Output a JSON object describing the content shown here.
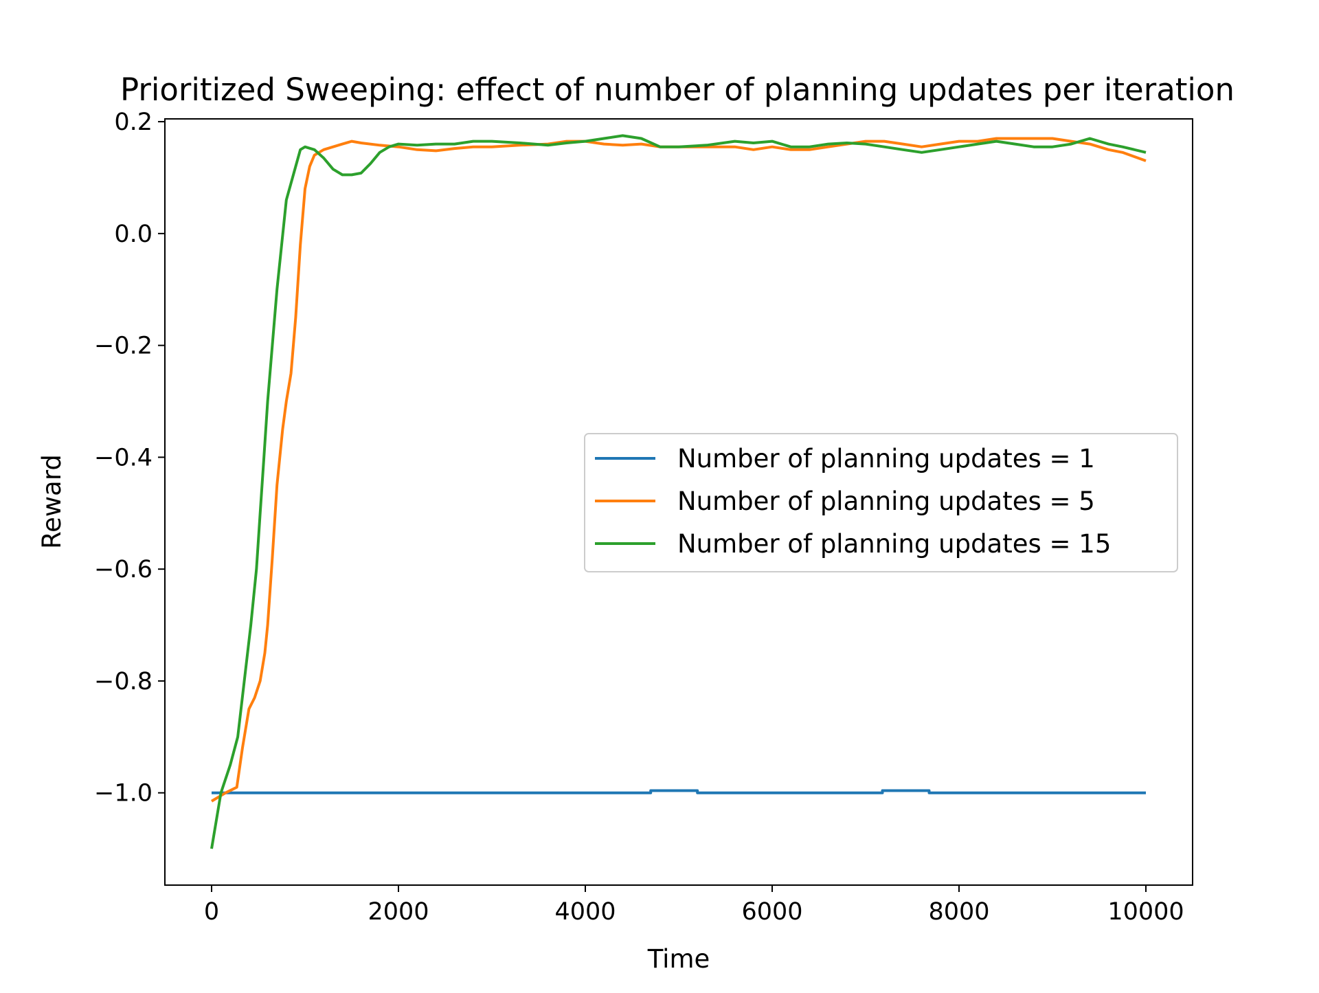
{
  "chart_data": {
    "type": "line",
    "title": "Prioritized Sweeping: effect of number of planning updates per iteration",
    "xlabel": "Time",
    "ylabel": "Reward",
    "xlim": [
      -500,
      10500
    ],
    "ylim": [
      -1.165,
      0.205
    ],
    "xticks": [
      0,
      2000,
      4000,
      6000,
      8000,
      10000
    ],
    "xtick_labels": [
      "0",
      "2000",
      "4000",
      "6000",
      "8000",
      "10000"
    ],
    "yticks": [
      0.2,
      0.0,
      -0.2,
      -0.4,
      -0.6,
      -0.8,
      -1.0
    ],
    "ytick_labels": [
      "0.2",
      "0.0",
      "−0.2",
      "−0.4",
      "−0.6",
      "−0.8",
      "−1.0"
    ],
    "grid": false,
    "legend_position": "center-right",
    "series": [
      {
        "name": "Number of planning updates = 1",
        "color": "#1f77b4",
        "x": [
          0,
          4700,
          4700,
          5200,
          5200,
          7180,
          7180,
          7680,
          7680,
          10000
        ],
        "y": [
          -1.0,
          -1.0,
          -0.996,
          -0.996,
          -1.0,
          -1.0,
          -0.996,
          -0.996,
          -1.0,
          -1.0
        ]
      },
      {
        "name": "Number of planning updates = 5",
        "color": "#ff7f0e",
        "x": [
          0,
          150,
          270,
          330,
          400,
          460,
          520,
          570,
          600,
          650,
          700,
          760,
          800,
          850,
          900,
          950,
          1000,
          1050,
          1100,
          1150,
          1200,
          1300,
          1400,
          1500,
          1600,
          1800,
          2000,
          2200,
          2400,
          2600,
          2800,
          3000,
          3300,
          3600,
          3800,
          4000,
          4200,
          4400,
          4600,
          4800,
          5000,
          5300,
          5600,
          5800,
          6000,
          6200,
          6400,
          6600,
          6800,
          7000,
          7200,
          7400,
          7600,
          7800,
          8000,
          8200,
          8400,
          8600,
          8800,
          9000,
          9200,
          9400,
          9600,
          9750,
          10000
        ],
        "y": [
          -1.015,
          -1.0,
          -0.99,
          -0.92,
          -0.85,
          -0.83,
          -0.8,
          -0.75,
          -0.7,
          -0.58,
          -0.45,
          -0.35,
          -0.3,
          -0.25,
          -0.15,
          -0.02,
          0.08,
          0.12,
          0.14,
          0.145,
          0.15,
          0.155,
          0.16,
          0.165,
          0.162,
          0.158,
          0.155,
          0.15,
          0.148,
          0.152,
          0.155,
          0.155,
          0.158,
          0.16,
          0.165,
          0.165,
          0.16,
          0.158,
          0.16,
          0.155,
          0.155,
          0.155,
          0.155,
          0.15,
          0.155,
          0.15,
          0.15,
          0.155,
          0.16,
          0.165,
          0.165,
          0.16,
          0.155,
          0.16,
          0.165,
          0.165,
          0.17,
          0.17,
          0.17,
          0.17,
          0.165,
          0.16,
          0.15,
          0.145,
          0.13
        ]
      },
      {
        "name": "Number of planning updates = 15",
        "color": "#2ca02c",
        "x": [
          0,
          100,
          200,
          280,
          350,
          420,
          480,
          520,
          560,
          600,
          650,
          700,
          750,
          800,
          850,
          900,
          950,
          1000,
          1100,
          1200,
          1300,
          1400,
          1500,
          1600,
          1700,
          1800,
          1900,
          2000,
          2200,
          2400,
          2600,
          2800,
          3000,
          3300,
          3600,
          3800,
          4000,
          4200,
          4400,
          4600,
          4800,
          5000,
          5300,
          5600,
          5800,
          6000,
          6200,
          6400,
          6600,
          6800,
          7000,
          7200,
          7400,
          7600,
          7800,
          8000,
          8200,
          8400,
          8600,
          8800,
          9000,
          9200,
          9400,
          9600,
          9750,
          10000
        ],
        "y": [
          -1.1,
          -1.0,
          -0.95,
          -0.9,
          -0.8,
          -0.7,
          -0.6,
          -0.5,
          -0.4,
          -0.3,
          -0.2,
          -0.1,
          -0.02,
          0.06,
          0.09,
          0.12,
          0.15,
          0.155,
          0.15,
          0.135,
          0.115,
          0.105,
          0.105,
          0.108,
          0.125,
          0.145,
          0.155,
          0.16,
          0.158,
          0.16,
          0.16,
          0.165,
          0.165,
          0.162,
          0.158,
          0.162,
          0.165,
          0.17,
          0.175,
          0.17,
          0.155,
          0.155,
          0.158,
          0.165,
          0.162,
          0.165,
          0.155,
          0.155,
          0.16,
          0.162,
          0.16,
          0.155,
          0.15,
          0.145,
          0.15,
          0.155,
          0.16,
          0.165,
          0.16,
          0.155,
          0.155,
          0.16,
          0.17,
          0.16,
          0.155,
          0.145
        ]
      }
    ]
  }
}
